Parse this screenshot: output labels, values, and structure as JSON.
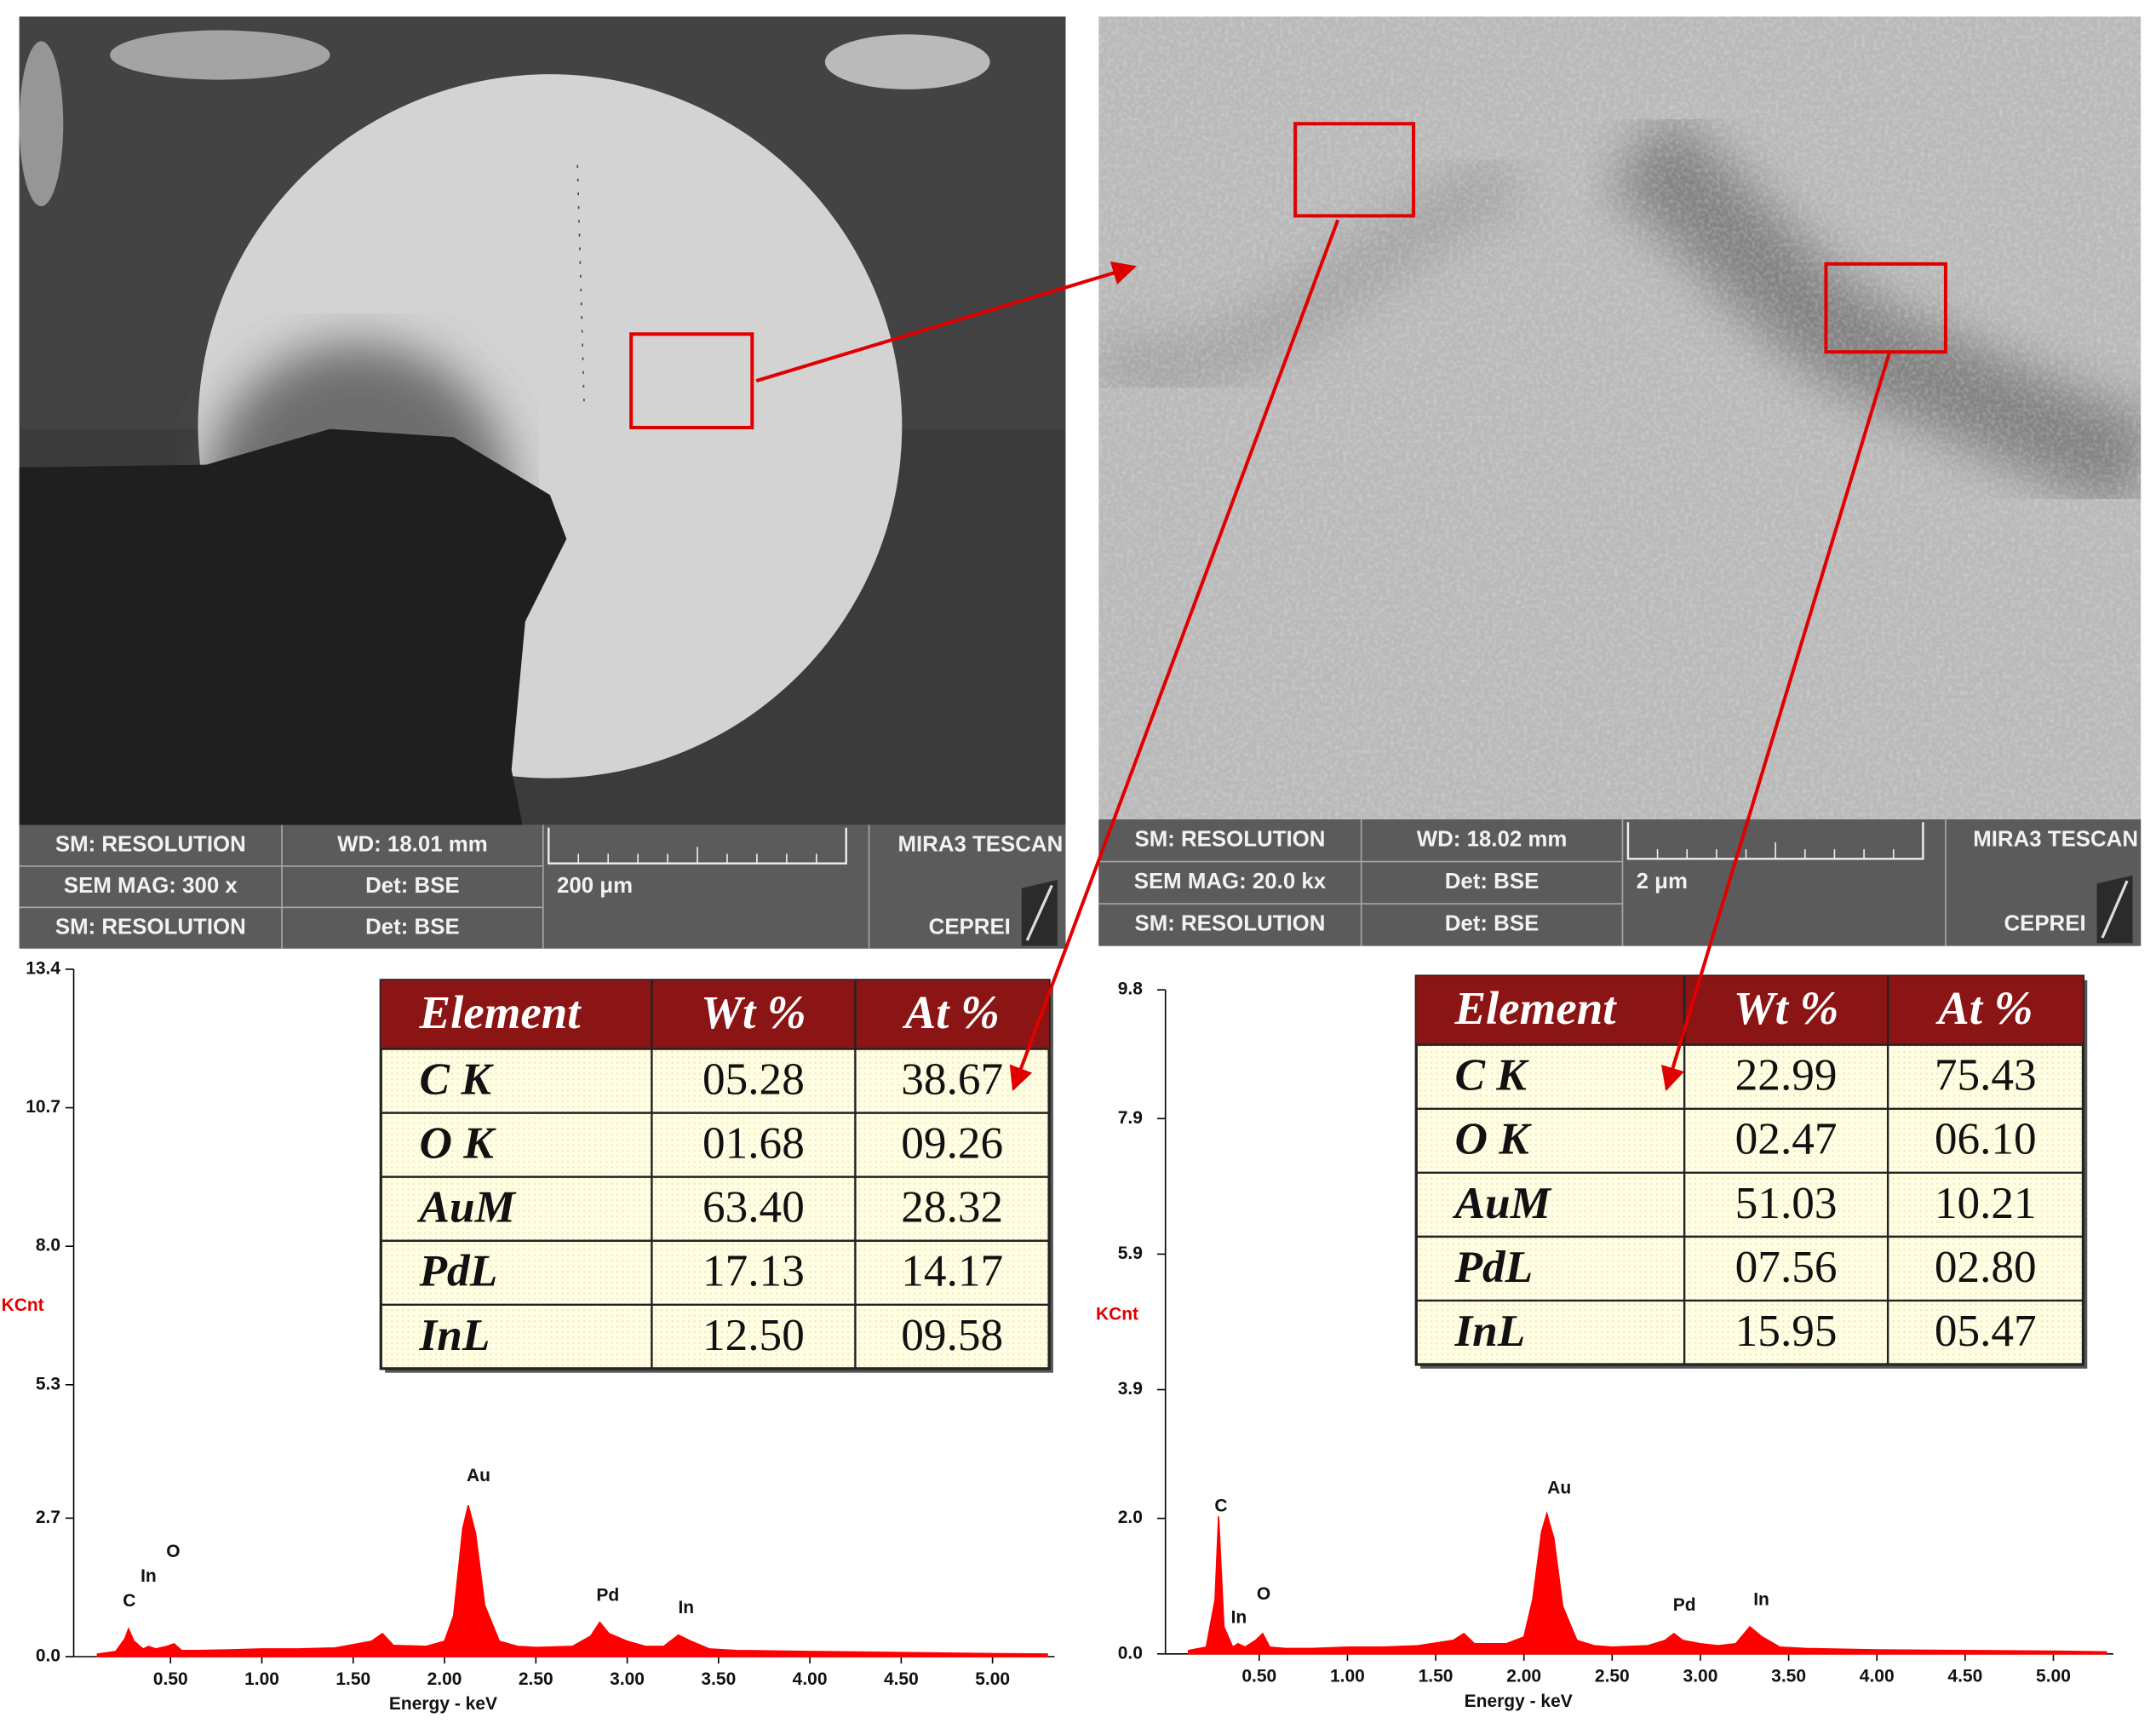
{
  "sem_images": [
    {
      "resolution": "SM: RESOLUTION",
      "wd": "WD: 18.01 mm",
      "brand": "MIRA3 TESCAN",
      "mag": "SEM MAG: 300 x",
      "detector": "Det: BSE",
      "scale": "200 μm",
      "mode": "SM: RESOLUTION",
      "detector2": "Det: BSE",
      "lab": "CEPREI"
    },
    {
      "resolution": "SM: RESOLUTION",
      "wd": "WD: 18.02 mm",
      "brand": "MIRA3 TESCAN",
      "mag": "SEM MAG: 20.0 kx",
      "detector": "Det: BSE",
      "scale": "2 μm",
      "mode": "SM: RESOLUTION",
      "detector2": "Det: BSE",
      "lab": "CEPREI"
    }
  ],
  "tables": [
    {
      "header": [
        "Element",
        "Wt %",
        "At %"
      ],
      "rows": [
        [
          "C K",
          "05.28",
          "38.67"
        ],
        [
          "O K",
          "01.68",
          "09.26"
        ],
        [
          "AuM",
          "63.40",
          "28.32"
        ],
        [
          "PdL",
          "17.13",
          "14.17"
        ],
        [
          "InL",
          "12.50",
          "09.58"
        ]
      ]
    },
    {
      "header": [
        "Element",
        "Wt %",
        "At %"
      ],
      "rows": [
        [
          "C K",
          "22.99",
          "75.43"
        ],
        [
          "O K",
          "02.47",
          "06.10"
        ],
        [
          "AuM",
          "51.03",
          "10.21"
        ],
        [
          "PdL",
          "07.56",
          "02.80"
        ],
        [
          "InL",
          "15.95",
          "05.47"
        ]
      ]
    }
  ],
  "chart_data": [
    {
      "type": "area",
      "xlabel": "Energy - keV",
      "ylabel": "KCnt",
      "xlim": [
        0,
        5.34
      ],
      "ylim": [
        0,
        13.4
      ],
      "xticks": [
        {
          "value": 0.5,
          "label": "0.50"
        },
        {
          "value": 1,
          "label": "1.00"
        },
        {
          "value": 1.5,
          "label": "1.50"
        },
        {
          "value": 2,
          "label": "2.00"
        },
        {
          "value": 2.5,
          "label": "2.50"
        },
        {
          "value": 3,
          "label": "3.00"
        },
        {
          "value": 3.5,
          "label": "3.50"
        },
        {
          "value": 4,
          "label": "4.00"
        },
        {
          "value": 4.5,
          "label": "4.50"
        },
        {
          "value": 5,
          "label": "5.00"
        }
      ],
      "yticks": [
        {
          "value": 0,
          "label": "0.0"
        },
        2.7,
        5.3,
        {
          "value": 8,
          "label": "8.0"
        },
        10.7,
        13.4
      ],
      "x": [
        0.1,
        0.2,
        0.25,
        0.27,
        0.3,
        0.35,
        0.38,
        0.42,
        0.48,
        0.52,
        0.56,
        0.65,
        0.8,
        1.0,
        1.2,
        1.4,
        1.6,
        1.66,
        1.72,
        1.9,
        2.0,
        2.05,
        2.1,
        2.13,
        2.17,
        2.22,
        2.3,
        2.4,
        2.5,
        2.7,
        2.8,
        2.85,
        2.9,
        3.0,
        3.1,
        3.2,
        3.28,
        3.35,
        3.45,
        3.6,
        4.0,
        4.5,
        5.0,
        5.3
      ],
      "series": [
        {
          "color": "#ff0000",
          "values": [
            0.05,
            0.1,
            0.35,
            0.54,
            0.3,
            0.15,
            0.2,
            0.15,
            0.2,
            0.25,
            0.12,
            0.12,
            0.13,
            0.15,
            0.15,
            0.17,
            0.3,
            0.45,
            0.22,
            0.2,
            0.3,
            0.8,
            2.5,
            2.95,
            2.4,
            1.0,
            0.3,
            0.2,
            0.18,
            0.2,
            0.4,
            0.67,
            0.45,
            0.3,
            0.2,
            0.2,
            0.42,
            0.3,
            0.15,
            0.12,
            0.1,
            0.08,
            0.06,
            0.05
          ]
        }
      ],
      "annotations": [
        "C",
        "In",
        "O",
        "Au",
        "Pd",
        "In"
      ]
    },
    {
      "type": "area",
      "xlabel": "Energy - keV",
      "ylabel": "KCnt",
      "xlim": [
        0,
        5.34
      ],
      "ylim": [
        0,
        9.8
      ],
      "xticks": [
        {
          "value": 0.5,
          "label": "0.50"
        },
        {
          "value": 1,
          "label": "1.00"
        },
        {
          "value": 1.5,
          "label": "1.50"
        },
        {
          "value": 2,
          "label": "2.00"
        },
        {
          "value": 2.5,
          "label": "2.50"
        },
        {
          "value": 3,
          "label": "3.00"
        },
        {
          "value": 3.5,
          "label": "3.50"
        },
        {
          "value": 4,
          "label": "4.00"
        },
        {
          "value": 4.5,
          "label": "4.50"
        },
        {
          "value": 5,
          "label": "5.00"
        }
      ],
      "yticks": [
        {
          "value": 0,
          "label": "0.0"
        },
        {
          "value": 2,
          "label": "2.0"
        },
        3.9,
        5.9,
        7.9,
        9.8
      ],
      "x": [
        0.1,
        0.2,
        0.25,
        0.27,
        0.3,
        0.35,
        0.38,
        0.42,
        0.48,
        0.52,
        0.56,
        0.65,
        0.8,
        1.0,
        1.2,
        1.4,
        1.6,
        1.66,
        1.72,
        1.9,
        2.0,
        2.05,
        2.1,
        2.13,
        2.17,
        2.22,
        2.3,
        2.4,
        2.5,
        2.7,
        2.8,
        2.85,
        2.9,
        3.0,
        3.1,
        3.2,
        3.28,
        3.35,
        3.45,
        3.6,
        4.0,
        4.5,
        5.0,
        5.3
      ],
      "series": [
        {
          "color": "#ff0000",
          "values": [
            0.05,
            0.1,
            0.8,
            2.03,
            0.4,
            0.1,
            0.15,
            0.1,
            0.2,
            0.3,
            0.1,
            0.08,
            0.08,
            0.1,
            0.1,
            0.12,
            0.2,
            0.3,
            0.15,
            0.15,
            0.25,
            0.8,
            1.8,
            2.07,
            1.7,
            0.7,
            0.2,
            0.12,
            0.1,
            0.12,
            0.2,
            0.3,
            0.2,
            0.15,
            0.12,
            0.15,
            0.4,
            0.25,
            0.1,
            0.08,
            0.06,
            0.05,
            0.04,
            0.03
          ]
        }
      ],
      "annotations": [
        "C",
        "In",
        "O",
        "Au",
        "Pd",
        "In"
      ]
    }
  ]
}
